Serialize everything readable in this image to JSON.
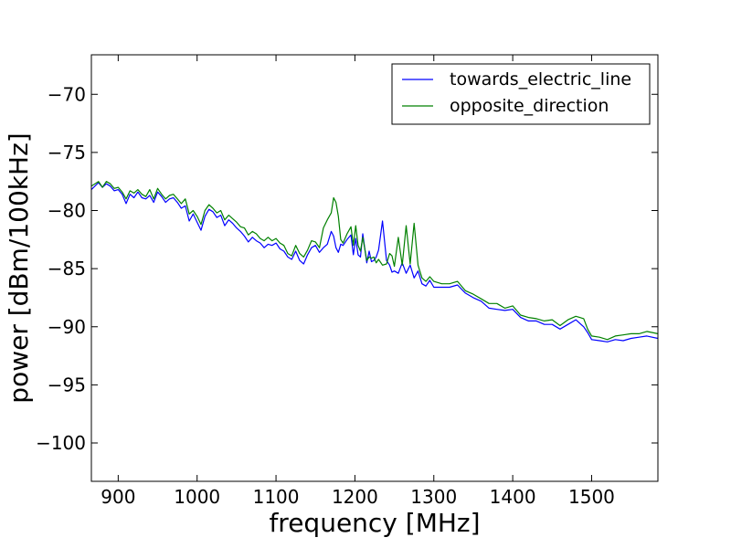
{
  "chart_data": {
    "type": "line",
    "xlabel": "frequency [MHz]",
    "ylabel": "power [dBm/100kHz]",
    "xlim": [
      866,
      1584
    ],
    "ylim": [
      -103.3,
      -66.6
    ],
    "grid": false,
    "legend_position": "upper-right",
    "x_ticks": [
      {
        "value": 900,
        "label": "900"
      },
      {
        "value": 1000,
        "label": "1000"
      },
      {
        "value": 1100,
        "label": "1100"
      },
      {
        "value": 1200,
        "label": "1200"
      },
      {
        "value": 1300,
        "label": "1300"
      },
      {
        "value": 1400,
        "label": "1400"
      },
      {
        "value": 1500,
        "label": "1500"
      }
    ],
    "y_ticks": [
      {
        "value": -70,
        "label": "−70"
      },
      {
        "value": -75,
        "label": "−75"
      },
      {
        "value": -80,
        "label": "−80"
      },
      {
        "value": -85,
        "label": "−85"
      },
      {
        "value": -90,
        "label": "−90"
      },
      {
        "value": -95,
        "label": "−95"
      },
      {
        "value": -100,
        "label": "−100"
      }
    ],
    "series": [
      {
        "name": "towards_electric_line",
        "color": "#0000ff",
        "x": [
          866,
          875,
          880,
          885,
          890,
          895,
          900,
          905,
          910,
          915,
          920,
          925,
          930,
          935,
          940,
          945,
          950,
          955,
          960,
          965,
          970,
          975,
          980,
          985,
          990,
          995,
          1000,
          1005,
          1010,
          1015,
          1020,
          1025,
          1030,
          1035,
          1040,
          1045,
          1050,
          1055,
          1060,
          1065,
          1070,
          1075,
          1080,
          1085,
          1090,
          1095,
          1100,
          1105,
          1110,
          1115,
          1120,
          1125,
          1130,
          1135,
          1140,
          1145,
          1150,
          1155,
          1160,
          1165,
          1170,
          1173,
          1176,
          1179,
          1182,
          1185,
          1190,
          1195,
          1198,
          1201,
          1204,
          1207,
          1210,
          1215,
          1218,
          1221,
          1224,
          1227,
          1230,
          1235,
          1240,
          1244,
          1247,
          1250,
          1255,
          1260,
          1265,
          1270,
          1275,
          1280,
          1285,
          1290,
          1295,
          1300,
          1310,
          1320,
          1330,
          1340,
          1350,
          1360,
          1370,
          1380,
          1390,
          1400,
          1410,
          1420,
          1430,
          1440,
          1450,
          1460,
          1470,
          1480,
          1490,
          1495,
          1500,
          1510,
          1520,
          1530,
          1540,
          1550,
          1560,
          1570,
          1584
        ],
        "values": [
          -78.2,
          -77.6,
          -78.0,
          -77.7,
          -77.9,
          -78.3,
          -78.2,
          -78.6,
          -79.4,
          -78.6,
          -78.9,
          -78.4,
          -78.9,
          -79.0,
          -78.7,
          -79.3,
          -78.4,
          -78.8,
          -79.3,
          -79.0,
          -78.9,
          -79.3,
          -79.8,
          -79.6,
          -80.9,
          -80.3,
          -81.0,
          -81.7,
          -80.5,
          -79.9,
          -80.1,
          -80.6,
          -80.4,
          -81.3,
          -80.8,
          -81.1,
          -81.5,
          -81.8,
          -82.2,
          -82.7,
          -82.3,
          -82.6,
          -82.8,
          -83.2,
          -82.9,
          -83.0,
          -82.8,
          -83.3,
          -83.5,
          -84.0,
          -84.2,
          -83.5,
          -84.3,
          -84.6,
          -83.8,
          -83.2,
          -83.0,
          -83.6,
          -83.2,
          -82.9,
          -81.8,
          -82.2,
          -83.2,
          -83.6,
          -82.9,
          -83.0,
          -82.5,
          -82.1,
          -83.8,
          -82.4,
          -83.8,
          -84.0,
          -82.0,
          -84.5,
          -83.5,
          -84.4,
          -84.3,
          -84.0,
          -83.4,
          -80.9,
          -84.3,
          -84.7,
          -85.3,
          -85.2,
          -85.4,
          -84.5,
          -85.4,
          -84.7,
          -85.8,
          -85.2,
          -86.3,
          -86.5,
          -86.0,
          -86.6,
          -86.6,
          -86.6,
          -86.4,
          -87.1,
          -87.5,
          -87.8,
          -88.4,
          -88.5,
          -88.6,
          -88.5,
          -89.2,
          -89.5,
          -89.5,
          -89.8,
          -89.8,
          -90.2,
          -89.8,
          -89.4,
          -90.0,
          -90.5,
          -91.1,
          -91.2,
          -91.3,
          -91.1,
          -91.2,
          -91.0,
          -90.9,
          -90.8,
          -91.0
        ]
      },
      {
        "name": "opposite_direction",
        "color": "#008000",
        "x": [
          866,
          875,
          880,
          885,
          890,
          895,
          900,
          905,
          910,
          915,
          920,
          925,
          930,
          935,
          940,
          945,
          950,
          955,
          960,
          965,
          970,
          975,
          980,
          985,
          990,
          995,
          1000,
          1005,
          1010,
          1015,
          1020,
          1025,
          1030,
          1035,
          1040,
          1045,
          1050,
          1055,
          1060,
          1065,
          1070,
          1075,
          1080,
          1085,
          1090,
          1095,
          1100,
          1105,
          1110,
          1115,
          1120,
          1125,
          1130,
          1135,
          1140,
          1145,
          1150,
          1155,
          1160,
          1165,
          1170,
          1173,
          1176,
          1179,
          1182,
          1185,
          1190,
          1195,
          1198,
          1201,
          1204,
          1207,
          1210,
          1215,
          1218,
          1221,
          1224,
          1227,
          1230,
          1235,
          1240,
          1244,
          1247,
          1250,
          1255,
          1260,
          1265,
          1270,
          1275,
          1280,
          1285,
          1290,
          1295,
          1300,
          1310,
          1320,
          1330,
          1340,
          1350,
          1360,
          1370,
          1380,
          1390,
          1400,
          1410,
          1420,
          1430,
          1440,
          1450,
          1460,
          1470,
          1480,
          1490,
          1495,
          1500,
          1510,
          1520,
          1530,
          1540,
          1550,
          1560,
          1570,
          1584
        ],
        "values": [
          -77.9,
          -77.5,
          -78.0,
          -77.5,
          -77.7,
          -78.1,
          -78.0,
          -78.4,
          -79.0,
          -78.3,
          -78.5,
          -78.2,
          -78.6,
          -78.8,
          -78.2,
          -79.0,
          -78.1,
          -78.6,
          -79.0,
          -78.7,
          -78.6,
          -79.0,
          -79.4,
          -79.0,
          -80.3,
          -80.0,
          -80.5,
          -81.2,
          -80.0,
          -79.5,
          -79.8,
          -80.2,
          -80.0,
          -80.8,
          -80.4,
          -80.7,
          -81.0,
          -81.4,
          -81.5,
          -82.1,
          -81.8,
          -82.0,
          -82.4,
          -82.6,
          -82.3,
          -82.6,
          -82.4,
          -82.8,
          -83.0,
          -83.7,
          -83.9,
          -83.0,
          -83.7,
          -84.0,
          -83.4,
          -82.6,
          -82.7,
          -83.2,
          -81.5,
          -80.8,
          -80.2,
          -78.9,
          -79.3,
          -80.5,
          -82.5,
          -82.8,
          -82.0,
          -81.4,
          -83.0,
          -81.3,
          -83.0,
          -83.5,
          -82.3,
          -84.3,
          -84.0,
          -84.1,
          -84.0,
          -84.5,
          -84.2,
          -84.7,
          -84.6,
          -83.7,
          -83.9,
          -84.8,
          -82.3,
          -84.7,
          -81.3,
          -84.6,
          -81.1,
          -84.7,
          -85.8,
          -86.1,
          -85.7,
          -86.1,
          -86.3,
          -86.3,
          -86.1,
          -86.9,
          -87.2,
          -87.6,
          -88.0,
          -88.0,
          -88.4,
          -88.2,
          -89.0,
          -89.2,
          -89.3,
          -89.5,
          -89.4,
          -89.9,
          -89.4,
          -89.1,
          -89.3,
          -90.2,
          -90.8,
          -90.9,
          -91.1,
          -90.8,
          -90.7,
          -90.6,
          -90.6,
          -90.4,
          -90.6
        ]
      }
    ]
  }
}
